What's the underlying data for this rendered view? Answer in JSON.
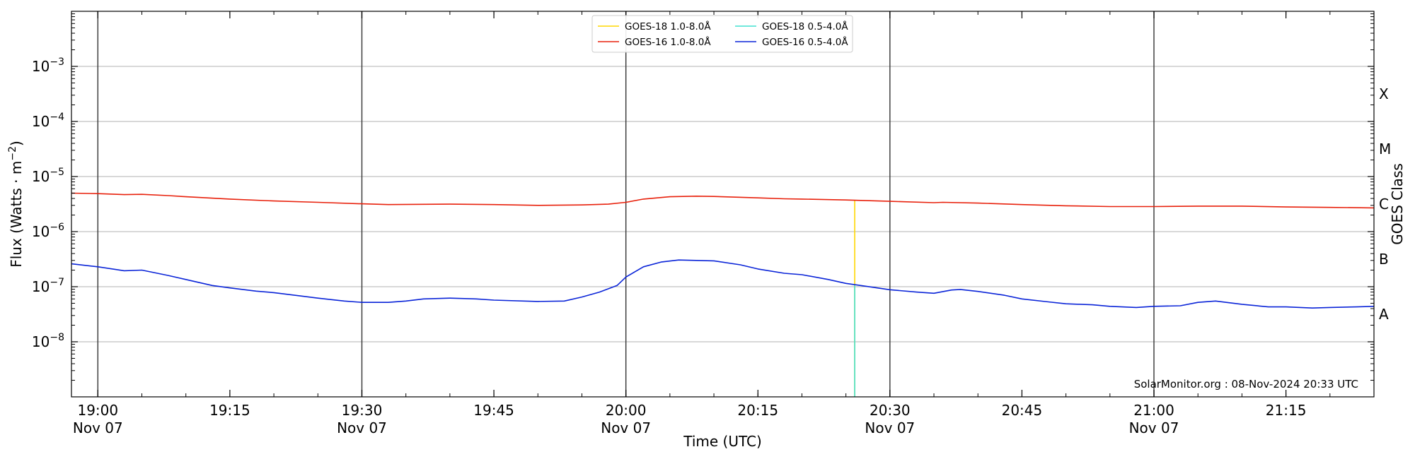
{
  "chart_data": {
    "type": "line",
    "xlabel": "Time (UTC)",
    "ylabel": "Flux (Watts · m⁻²)",
    "y2label": "GOES Class",
    "yscale": "log",
    "xlim": [
      "18:57",
      "21:25"
    ],
    "ylim": [
      1e-09,
      0.01
    ],
    "grid": "horizontal at decades, vertical at half-hours",
    "legend_position": "top-center",
    "watermark": "SolarMonitor.org : 08-Nov-2024 20:33 UTC",
    "x_ticks": [
      {
        "time": "19:00",
        "date": "Nov 07"
      },
      {
        "time": "19:15",
        "date": ""
      },
      {
        "time": "19:30",
        "date": "Nov 07"
      },
      {
        "time": "19:45",
        "date": ""
      },
      {
        "time": "20:00",
        "date": "Nov 07"
      },
      {
        "time": "20:15",
        "date": ""
      },
      {
        "time": "20:30",
        "date": "Nov 07"
      },
      {
        "time": "20:45",
        "date": ""
      },
      {
        "time": "21:00",
        "date": "Nov 07"
      },
      {
        "time": "21:15",
        "date": ""
      }
    ],
    "y_ticks": [
      {
        "base": "10",
        "exp": "−3",
        "value": 0.001
      },
      {
        "base": "10",
        "exp": "−4",
        "value": 0.0001
      },
      {
        "base": "10",
        "exp": "−5",
        "value": 1e-05
      },
      {
        "base": "10",
        "exp": "−6",
        "value": 1e-06
      },
      {
        "base": "10",
        "exp": "−7",
        "value": 1e-07
      },
      {
        "base": "10",
        "exp": "−8",
        "value": 1e-08
      }
    ],
    "goes_classes": [
      {
        "label": "X",
        "value": 0.000316
      },
      {
        "label": "M",
        "value": 3.16e-05
      },
      {
        "label": "C",
        "value": 3.16e-06
      },
      {
        "label": "B",
        "value": 3.16e-07
      },
      {
        "label": "A",
        "value": 3.16e-08
      }
    ],
    "series": [
      {
        "name": "GOES-18 1.0-8.0Å",
        "color": "#FFD700",
        "x": [
          "20:26",
          "20:26"
        ],
        "y": [
          1e-09,
          3.7e-06
        ]
      },
      {
        "name": "GOES-18 0.5-4.0Å",
        "color": "#40E0D0",
        "x": [
          "20:26",
          "20:26"
        ],
        "y": [
          1e-09,
          1.05e-07
        ]
      },
      {
        "name": "GOES-16 1.0-8.0Å",
        "color": "#E8210C",
        "x": [
          "18:57",
          "19:00",
          "19:03",
          "19:05",
          "19:08",
          "19:10",
          "19:15",
          "19:20",
          "19:25",
          "19:30",
          "19:33",
          "19:40",
          "19:45",
          "19:50",
          "19:55",
          "19:58",
          "20:00",
          "20:02",
          "20:05",
          "20:08",
          "20:10",
          "20:15",
          "20:18",
          "20:20",
          "20:25",
          "20:30",
          "20:35",
          "20:36",
          "20:40",
          "20:45",
          "20:50",
          "20:55",
          "21:00",
          "21:05",
          "21:10",
          "21:15",
          "21:20",
          "21:25"
        ],
        "y": [
          5e-06,
          4.9e-06,
          4.7e-06,
          4.75e-06,
          4.5e-06,
          4.3e-06,
          3.9e-06,
          3.6e-06,
          3.4e-06,
          3.2e-06,
          3.1e-06,
          3.15e-06,
          3.1e-06,
          3e-06,
          3.05e-06,
          3.15e-06,
          3.4e-06,
          3.9e-06,
          4.3e-06,
          4.4e-06,
          4.35e-06,
          4.1e-06,
          3.95e-06,
          3.9e-06,
          3.75e-06,
          3.55e-06,
          3.35e-06,
          3.4e-06,
          3.3e-06,
          3.1e-06,
          2.95e-06,
          2.85e-06,
          2.85e-06,
          2.9e-06,
          2.9e-06,
          2.8e-06,
          2.75e-06,
          2.7e-06
        ]
      },
      {
        "name": "GOES-16 0.5-4.0Å",
        "color": "#0A24D8",
        "x": [
          "18:57",
          "19:00",
          "19:03",
          "19:05",
          "19:08",
          "19:10",
          "19:13",
          "19:15",
          "19:18",
          "19:20",
          "19:23",
          "19:25",
          "19:28",
          "19:30",
          "19:33",
          "19:35",
          "19:37",
          "19:40",
          "19:43",
          "19:45",
          "19:50",
          "19:53",
          "19:55",
          "19:57",
          "19:59",
          "20:00",
          "20:02",
          "20:04",
          "20:06",
          "20:08",
          "20:10",
          "20:13",
          "20:15",
          "20:18",
          "20:20",
          "20:23",
          "20:25",
          "20:28",
          "20:30",
          "20:33",
          "20:35",
          "20:37",
          "20:38",
          "20:40",
          "20:43",
          "20:45",
          "20:48",
          "20:50",
          "20:53",
          "20:55",
          "20:58",
          "21:00",
          "21:03",
          "21:05",
          "21:07",
          "21:10",
          "21:13",
          "21:15",
          "21:18",
          "21:20",
          "21:23",
          "21:25"
        ],
        "y": [
          2.6e-07,
          2.3e-07,
          1.95e-07,
          2e-07,
          1.6e-07,
          1.35e-07,
          1.05e-07,
          9.5e-08,
          8.3e-08,
          7.8e-08,
          6.8e-08,
          6.2e-08,
          5.5e-08,
          5.2e-08,
          5.2e-08,
          5.5e-08,
          6e-08,
          6.2e-08,
          6e-08,
          5.7e-08,
          5.4e-08,
          5.5e-08,
          6.5e-08,
          8e-08,
          1.05e-07,
          1.5e-07,
          2.3e-07,
          2.8e-07,
          3.05e-07,
          3e-07,
          2.95e-07,
          2.5e-07,
          2.1e-07,
          1.75e-07,
          1.65e-07,
          1.35e-07,
          1.15e-07,
          9.8e-08,
          8.8e-08,
          8e-08,
          7.6e-08,
          8.7e-08,
          8.9e-08,
          8.2e-08,
          7e-08,
          6e-08,
          5.3e-08,
          4.9e-08,
          4.7e-08,
          4.4e-08,
          4.2e-08,
          4.4e-08,
          4.5e-08,
          5.2e-08,
          5.5e-08,
          4.8e-08,
          4.3e-08,
          4.3e-08,
          4.1e-08,
          4.2e-08,
          4.3e-08,
          4.4e-08
        ]
      }
    ]
  }
}
